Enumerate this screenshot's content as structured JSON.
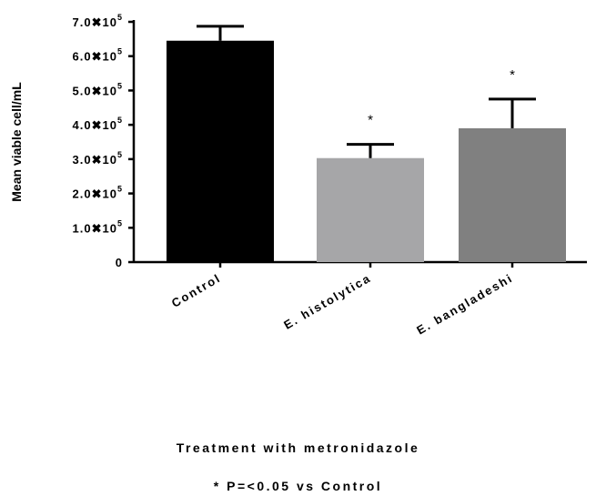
{
  "chart_data": {
    "type": "bar",
    "categories": [
      "Control",
      "E. histolytica",
      "E. bangladeshi"
    ],
    "values": [
      645000,
      303000,
      390000
    ],
    "errors": [
      42000,
      40000,
      85000
    ],
    "significance": [
      "",
      "*",
      "*"
    ],
    "bar_colors": [
      "#000000",
      "#a6a6a8",
      "#808080"
    ],
    "ylabel": "Mean viable cell/mL",
    "xlabel": "Treatment with metronidazole",
    "footnote": "* P=<0.05 vs Control",
    "ylim": [
      0,
      700000
    ],
    "yticks": [
      {
        "value": 0,
        "label": "0",
        "exp": ""
      },
      {
        "value": 100000,
        "label": "1.0✖10",
        "exp": "5"
      },
      {
        "value": 200000,
        "label": "2.0✖10",
        "exp": "5"
      },
      {
        "value": 300000,
        "label": "3.0✖10",
        "exp": "5"
      },
      {
        "value": 400000,
        "label": "4.0✖10",
        "exp": "5"
      },
      {
        "value": 500000,
        "label": "5.0✖10",
        "exp": "5"
      },
      {
        "value": 600000,
        "label": "6.0✖10",
        "exp": "5"
      },
      {
        "value": 700000,
        "label": "7.0✖10",
        "exp": "5"
      }
    ],
    "grid": false,
    "legend": "none"
  }
}
